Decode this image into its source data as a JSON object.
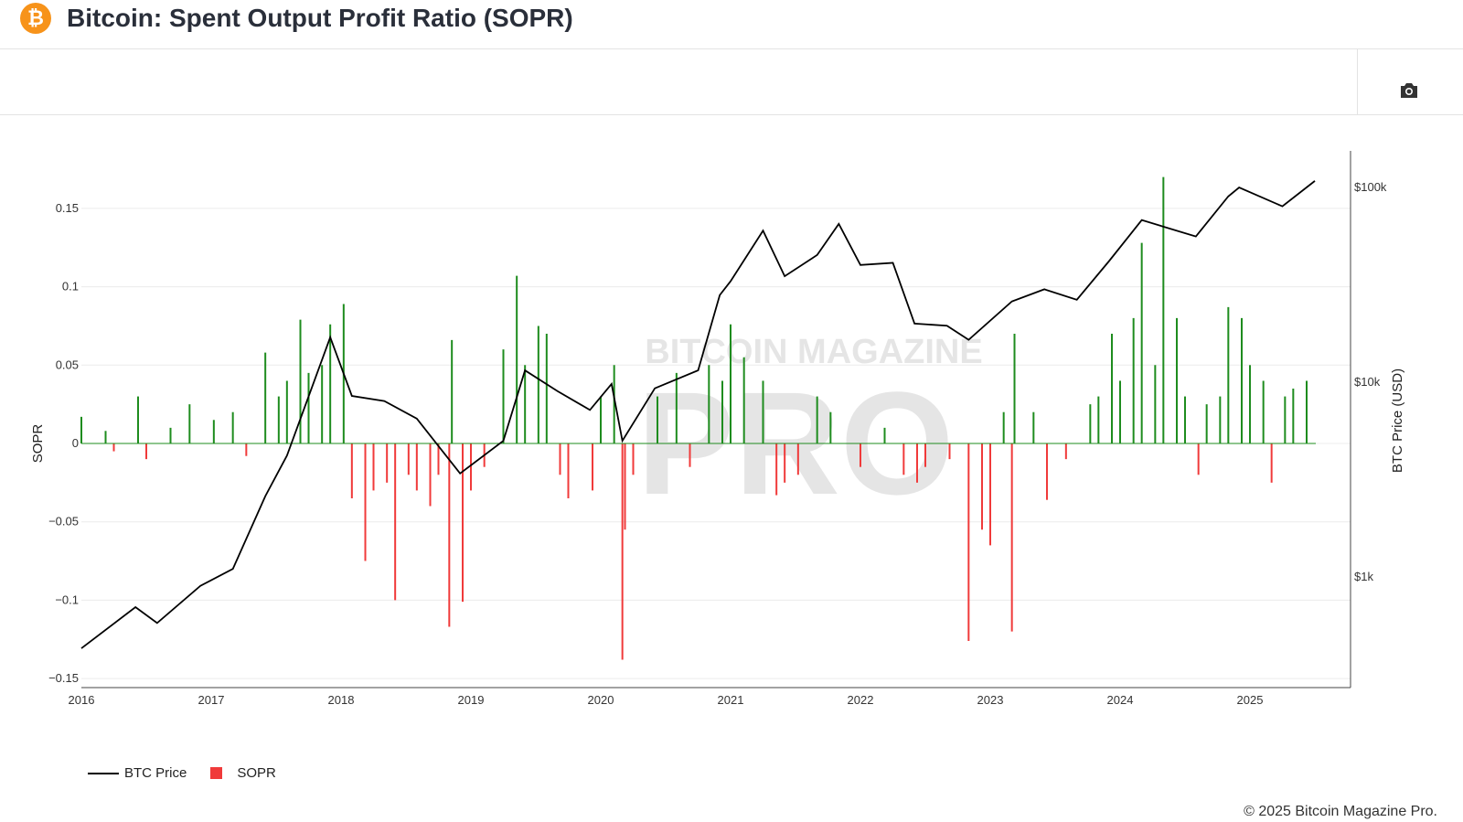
{
  "header": {
    "title": "Bitcoin: Spent Output Profit Ratio (SOPR)",
    "logo_icon": "bitcoin-icon"
  },
  "toolbar": {
    "camera_icon": "camera-icon"
  },
  "watermark": "BITCOIN MAGAZINE PRO",
  "footer": {
    "copyright": "© 2025 Bitcoin Magazine Pro."
  },
  "chart_data": {
    "type": "bar+line",
    "title": "",
    "xlabel": "",
    "ylabel": "SOPR",
    "y2label": "BTC Price (USD)",
    "ylim": [
      -0.155,
      0.19
    ],
    "y2_scale": "log",
    "x_ticks": [
      "2016",
      "2017",
      "2018",
      "2019",
      "2020",
      "2021",
      "2022",
      "2023",
      "2024",
      "2025"
    ],
    "y_ticks": [
      {
        "v": 0.15,
        "label": "0.15"
      },
      {
        "v": 0.1,
        "label": "0.1"
      },
      {
        "v": 0.05,
        "label": "0.05"
      },
      {
        "v": 0,
        "label": "0"
      },
      {
        "v": -0.05,
        "label": "−0.05"
      },
      {
        "v": -0.1,
        "label": "−0.1"
      },
      {
        "v": -0.15,
        "label": "−0.15"
      }
    ],
    "y2_ticks": [
      {
        "v": 100000,
        "label": "$100k"
      },
      {
        "v": 10000,
        "label": "$10k"
      },
      {
        "v": 1000,
        "label": "$1k"
      }
    ],
    "grid": true,
    "legend": {
      "position": "bottom-left",
      "entries": [
        "BTC Price",
        "SOPR"
      ]
    },
    "colors": {
      "price": "#000000",
      "positive": "#1e8c1e",
      "negative": "#f03a3a"
    },
    "series": [
      {
        "name": "BTC Price",
        "type": "line",
        "points": [
          [
            "2016-01",
            430
          ],
          [
            "2016-06",
            700
          ],
          [
            "2016-08",
            580
          ],
          [
            "2016-12",
            900
          ],
          [
            "2017-03",
            1100
          ],
          [
            "2017-06",
            2600
          ],
          [
            "2017-08",
            4200
          ],
          [
            "2017-12",
            17000
          ],
          [
            "2018-02",
            8500
          ],
          [
            "2018-05",
            8000
          ],
          [
            "2018-08",
            6500
          ],
          [
            "2018-11",
            4000
          ],
          [
            "2018-12",
            3400
          ],
          [
            "2019-04",
            5000
          ],
          [
            "2019-06",
            11500
          ],
          [
            "2019-09",
            9000
          ],
          [
            "2019-12",
            7200
          ],
          [
            "2020-02",
            9800
          ],
          [
            "2020-03",
            5000
          ],
          [
            "2020-06",
            9300
          ],
          [
            "2020-10",
            11500
          ],
          [
            "2020-12",
            28000
          ],
          [
            "2021-01",
            33000
          ],
          [
            "2021-04",
            60000
          ],
          [
            "2021-06",
            35000
          ],
          [
            "2021-09",
            45000
          ],
          [
            "2021-11",
            65000
          ],
          [
            "2022-01",
            40000
          ],
          [
            "2022-04",
            41000
          ],
          [
            "2022-06",
            20000
          ],
          [
            "2022-09",
            19500
          ],
          [
            "2022-11",
            16500
          ],
          [
            "2023-03",
            26000
          ],
          [
            "2023-06",
            30000
          ],
          [
            "2023-09",
            26500
          ],
          [
            "2023-12",
            42000
          ],
          [
            "2024-03",
            68000
          ],
          [
            "2024-08",
            56000
          ],
          [
            "2024-11",
            90000
          ],
          [
            "2024-12",
            100000
          ],
          [
            "2025-04",
            80000
          ],
          [
            "2025-07",
            108000
          ]
        ]
      },
      {
        "name": "SOPR",
        "type": "bar",
        "points": [
          [
            "2016-01",
            0.017
          ],
          [
            "2016-03",
            0.008
          ],
          [
            "2016-04",
            -0.005
          ],
          [
            "2016-06",
            0.03
          ],
          [
            "2016-07",
            -0.01
          ],
          [
            "2016-09",
            0.01
          ],
          [
            "2016-11",
            0.025
          ],
          [
            "2017-01",
            0.015
          ],
          [
            "2017-03",
            0.02
          ],
          [
            "2017-04",
            -0.008
          ],
          [
            "2017-06",
            0.058
          ],
          [
            "2017-07",
            0.03
          ],
          [
            "2017-08",
            0.04
          ],
          [
            "2017-09",
            0.079
          ],
          [
            "2017-10",
            0.045
          ],
          [
            "2017-11",
            0.05
          ],
          [
            "2017-12",
            0.076
          ],
          [
            "2018-01",
            0.089
          ],
          [
            "2018-02",
            -0.035
          ],
          [
            "2018-03",
            -0.075
          ],
          [
            "2018-04",
            -0.03
          ],
          [
            "2018-05",
            -0.025
          ],
          [
            "2018-06",
            -0.1
          ],
          [
            "2018-07",
            -0.02
          ],
          [
            "2018-08",
            -0.03
          ],
          [
            "2018-09",
            -0.04
          ],
          [
            "2018-10",
            -0.02
          ],
          [
            "2018-11",
            0.066
          ],
          [
            "2018-11",
            -0.117
          ],
          [
            "2018-12",
            -0.101
          ],
          [
            "2019-01",
            -0.03
          ],
          [
            "2019-02",
            -0.015
          ],
          [
            "2019-04",
            0.06
          ],
          [
            "2019-05",
            0.107
          ],
          [
            "2019-06",
            0.05
          ],
          [
            "2019-07",
            0.075
          ],
          [
            "2019-08",
            0.07
          ],
          [
            "2019-09",
            -0.02
          ],
          [
            "2019-10",
            -0.035
          ],
          [
            "2019-12",
            -0.03
          ],
          [
            "2020-01",
            0.03
          ],
          [
            "2020-02",
            0.05
          ],
          [
            "2020-03",
            -0.138
          ],
          [
            "2020-03",
            -0.055
          ],
          [
            "2020-04",
            -0.02
          ],
          [
            "2020-06",
            0.03
          ],
          [
            "2020-08",
            0.045
          ],
          [
            "2020-09",
            -0.015
          ],
          [
            "2020-11",
            0.05
          ],
          [
            "2020-12",
            0.04
          ],
          [
            "2021-01",
            0.076
          ],
          [
            "2021-02",
            0.055
          ],
          [
            "2021-04",
            0.04
          ],
          [
            "2021-05",
            -0.033
          ],
          [
            "2021-06",
            -0.025
          ],
          [
            "2021-07",
            -0.02
          ],
          [
            "2021-09",
            0.03
          ],
          [
            "2021-10",
            0.02
          ],
          [
            "2022-01",
            -0.015
          ],
          [
            "2022-03",
            0.01
          ],
          [
            "2022-05",
            -0.02
          ],
          [
            "2022-06",
            -0.025
          ],
          [
            "2022-07",
            -0.015
          ],
          [
            "2022-09",
            -0.01
          ],
          [
            "2022-11",
            -0.126
          ],
          [
            "2022-12",
            -0.055
          ],
          [
            "2023-01",
            -0.065
          ],
          [
            "2023-02",
            0.02
          ],
          [
            "2023-03",
            -0.12
          ],
          [
            "2023-03",
            0.07
          ],
          [
            "2023-05",
            0.02
          ],
          [
            "2023-06",
            -0.036
          ],
          [
            "2023-08",
            -0.01
          ],
          [
            "2023-10",
            0.025
          ],
          [
            "2023-11",
            0.03
          ],
          [
            "2023-12",
            0.07
          ],
          [
            "2024-01",
            0.04
          ],
          [
            "2024-02",
            0.08
          ],
          [
            "2024-03",
            0.128
          ],
          [
            "2024-04",
            0.05
          ],
          [
            "2024-05",
            0.17
          ],
          [
            "2024-06",
            0.08
          ],
          [
            "2024-07",
            0.03
          ],
          [
            "2024-08",
            -0.02
          ],
          [
            "2024-09",
            0.025
          ],
          [
            "2024-10",
            0.03
          ],
          [
            "2024-11",
            0.087
          ],
          [
            "2024-12",
            0.08
          ],
          [
            "2025-01",
            0.05
          ],
          [
            "2025-02",
            0.04
          ],
          [
            "2025-03",
            -0.025
          ],
          [
            "2025-04",
            0.03
          ],
          [
            "2025-05",
            0.035
          ],
          [
            "2025-06",
            0.04
          ]
        ]
      }
    ]
  }
}
